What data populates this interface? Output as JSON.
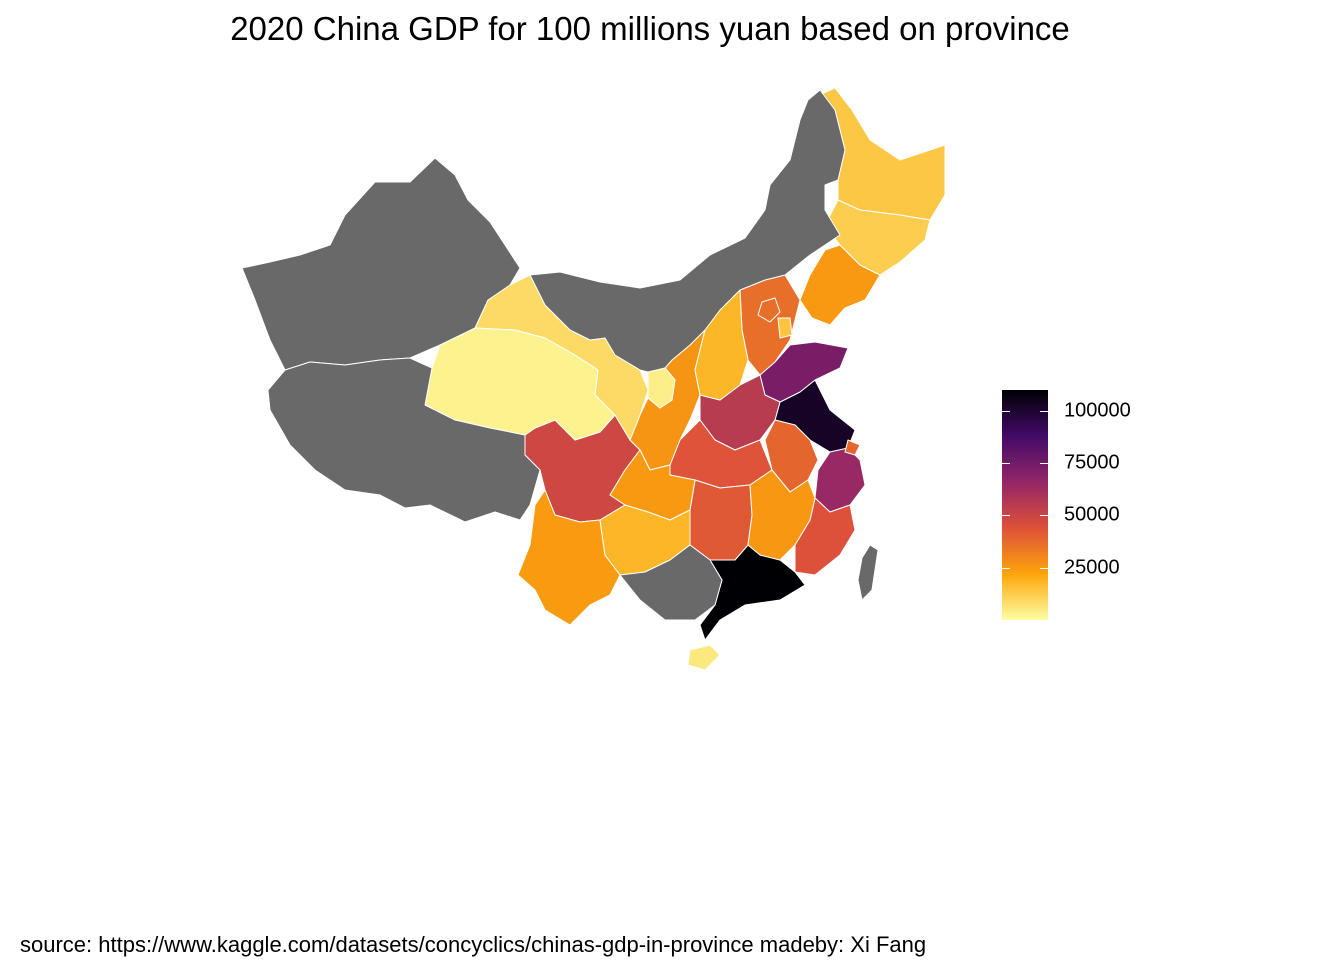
{
  "title": "2020 China GDP for 100 millions yuan based on province",
  "caption": "source: https://www.kaggle.com/datasets/concyclics/chinas-gdp-in-province madeby: Xi Fang",
  "legend": {
    "scale": "inferno-reversed",
    "min": 0,
    "max": 110000,
    "ticks": [
      {
        "value": 100000,
        "label": "100000"
      },
      {
        "value": 75000,
        "label": "75000"
      },
      {
        "value": 50000,
        "label": "50000"
      },
      {
        "value": 25000,
        "label": "25000"
      }
    ],
    "gradient_stops": [
      "#FCFFA4",
      "#FCA50A",
      "#DD513A",
      "#932667",
      "#420A68",
      "#000004"
    ]
  },
  "colors": {
    "no_data": "#696969",
    "border": "#ffffff"
  },
  "chart_data": {
    "type": "choropleth",
    "title": "2020 China GDP for 100 millions yuan based on province",
    "fill_label": "",
    "regions": [
      {
        "name": "Guangdong",
        "value": 110761
      },
      {
        "name": "Jiangsu",
        "value": 102719
      },
      {
        "name": "Shandong",
        "value": 73129
      },
      {
        "name": "Zhejiang",
        "value": 64613
      },
      {
        "name": "Henan",
        "value": 54997
      },
      {
        "name": "Sichuan",
        "value": 48599
      },
      {
        "name": "Fujian",
        "value": 43904
      },
      {
        "name": "Hubei",
        "value": 43443
      },
      {
        "name": "Hunan",
        "value": 41782
      },
      {
        "name": "Shanghai",
        "value": 38701
      },
      {
        "name": "Anhui",
        "value": 38681
      },
      {
        "name": "Hebei",
        "value": 36207
      },
      {
        "name": "Beijing",
        "value": 36103
      },
      {
        "name": "Shaanxi",
        "value": 26182
      },
      {
        "name": "Jiangxi",
        "value": 25692
      },
      {
        "name": "Chongqing",
        "value": 25003
      },
      {
        "name": "Liaoning",
        "value": 25115
      },
      {
        "name": "Yunnan",
        "value": 24522
      },
      {
        "name": "Shanxi",
        "value": 17652
      },
      {
        "name": "Guizhou",
        "value": 17827
      },
      {
        "name": "Tianjin",
        "value": 14084
      },
      {
        "name": "Heilongjiang",
        "value": 13699
      },
      {
        "name": "Jilin",
        "value": 12311
      },
      {
        "name": "Gansu",
        "value": 9017
      },
      {
        "name": "Hainan",
        "value": 5532
      },
      {
        "name": "Ningxia",
        "value": 3921
      },
      {
        "name": "Qinghai",
        "value": 3006
      },
      {
        "name": "Xinjiang",
        "value": null
      },
      {
        "name": "Tibet",
        "value": null
      },
      {
        "name": "Inner Mongolia",
        "value": null
      },
      {
        "name": "Guangxi",
        "value": null
      },
      {
        "name": "Taiwan",
        "value": null
      }
    ]
  }
}
